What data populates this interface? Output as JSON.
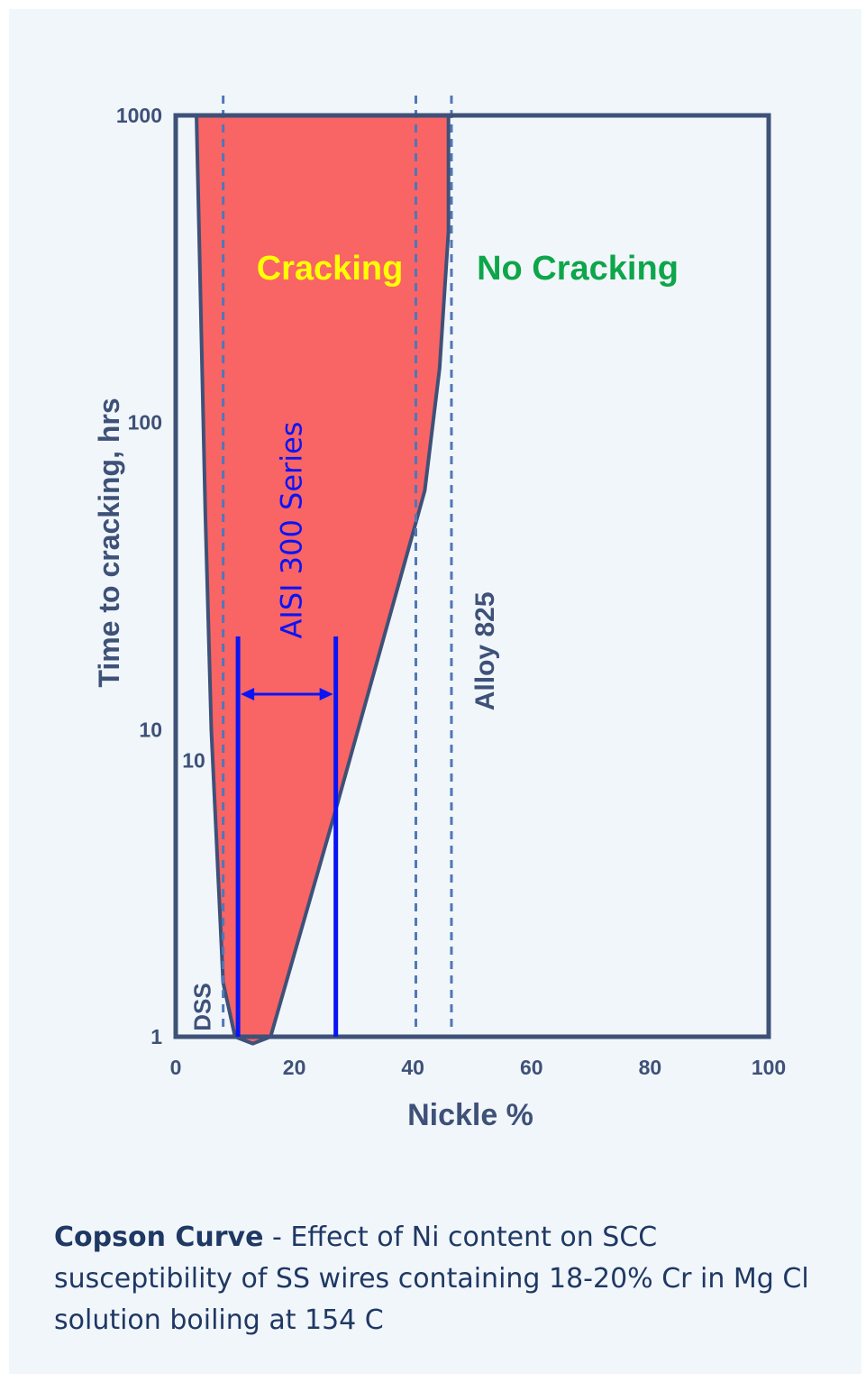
{
  "chart_data": {
    "type": "area",
    "title": "",
    "xlabel": "Nickle %",
    "ylabel": "Time to cracking, hrs",
    "xlim": [
      0,
      100
    ],
    "ylim": [
      1,
      1000
    ],
    "yscale": "log",
    "grid": false,
    "x_ticks": [
      "0",
      "20",
      "40",
      "60",
      "80",
      "100"
    ],
    "y_ticks": [
      "1",
      "10",
      "100",
      "1000"
    ],
    "extra_tick_label": "10",
    "region_left_boundary": [
      {
        "x": 3.5,
        "y": 1000
      },
      {
        "x": 5,
        "y": 50
      },
      {
        "x": 6,
        "y": 10
      },
      {
        "x": 8,
        "y": 1.5
      },
      {
        "x": 10,
        "y": 1
      }
    ],
    "region_right_boundary": [
      {
        "x": 16,
        "y": 1
      },
      {
        "x": 27,
        "y": 5.5
      },
      {
        "x": 42,
        "y": 60
      },
      {
        "x": 44.5,
        "y": 150
      },
      {
        "x": 46,
        "y": 420
      },
      {
        "x": 46,
        "y": 1000
      }
    ],
    "region_bottom_tip": {
      "x": 13,
      "y": 0.95
    },
    "regions": {
      "cracking_label": "Cracking",
      "no_cracking_label": "No Cracking"
    },
    "reference_lines": [
      {
        "x": 8,
        "label": "DSS"
      },
      {
        "x": 40.5,
        "label": ""
      },
      {
        "x": 46.5,
        "label": "Alloy 825"
      }
    ],
    "range_markers": {
      "x_start": 10.5,
      "x_end": 27,
      "label": "AISI 300 Series"
    },
    "colors": {
      "cracking_fill": "#f96465",
      "frame": "#3e5178",
      "dashed": "#4f78b8",
      "marker": "#0a15f5",
      "cracking_text": "#ffff00",
      "no_cracking_text": "#0da64a"
    }
  },
  "caption": {
    "bold": "Copson Curve",
    "text": " - Effect of Ni content on SCC susceptibility of SS wires containing 18-20% Cr in Mg Cl solution boiling at 154 C"
  }
}
